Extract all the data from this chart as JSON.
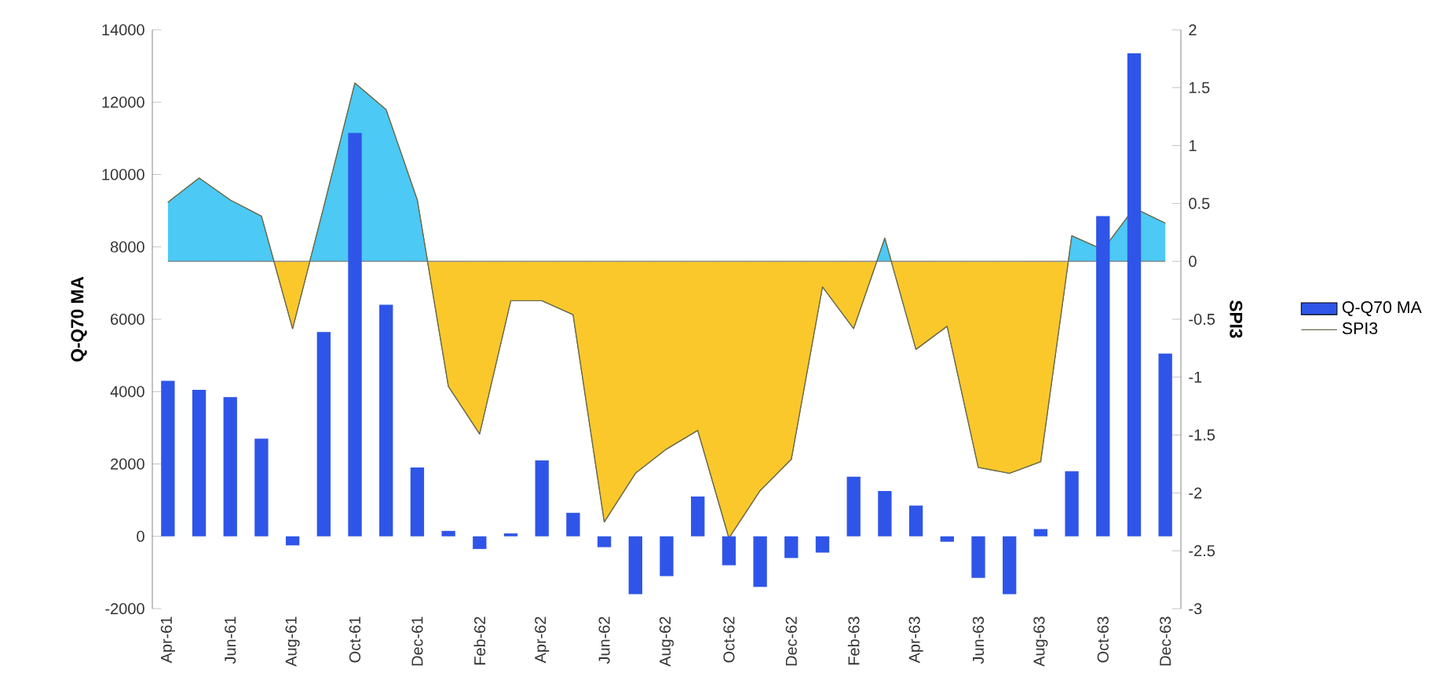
{
  "chart_data": {
    "type": "bar",
    "ylabel": "Q-Q70 MA",
    "y2label": "SPI3",
    "categories": [
      "Apr-61",
      null,
      "Jun-61",
      null,
      "Aug-61",
      null,
      "Oct-61",
      null,
      "Dec-61",
      null,
      "Feb-62",
      null,
      "Apr-62",
      null,
      "Jun-62",
      null,
      "Aug-62",
      null,
      "Oct-62",
      null,
      "Dec-62",
      null,
      "Feb-63",
      null,
      "Apr-63",
      null,
      "Jun-63",
      null,
      "Aug-63",
      null,
      "Oct-63",
      null,
      "Dec-63"
    ],
    "ylim": [
      -2000,
      14000
    ],
    "yticks": [
      -2000,
      0,
      2000,
      4000,
      6000,
      8000,
      10000,
      12000,
      14000
    ],
    "y2lim": [
      -3,
      2
    ],
    "y2ticks": [
      -3,
      -2.5,
      -2,
      -1.5,
      -1,
      -0.5,
      0,
      0.5,
      1,
      1.5,
      2
    ],
    "legend": "right",
    "ref_lines": [
      {
        "axis": "y2",
        "value": 0,
        "color": "#7a7a7a"
      }
    ],
    "series": [
      {
        "name": "Q-Q70 MA",
        "color": "#2f55e8",
        "values": [
          4300,
          4050,
          3850,
          2700,
          -250,
          5650,
          11150,
          6400,
          1900,
          150,
          -350,
          80,
          2100,
          650,
          -300,
          -1600,
          -1100,
          1100,
          -800,
          -1400,
          -600,
          -450,
          1650,
          1250,
          850,
          -150,
          -1150,
          -1600,
          200,
          1800,
          8850,
          13350,
          5050
        ]
      },
      {
        "name": "SPI3",
        "type": "area",
        "axis": "y2",
        "color": "#6b6b4a",
        "colors": [
          "#4cc9f5",
          "#4cc9f5",
          "#4cc9f5",
          "#4cc9f5",
          "#fbc82c",
          "#4cc9f5",
          "#4cc9f5",
          "#4cc9f5",
          "#4cc9f5",
          "#fbc82c",
          "#fbc82c",
          "#fbc82c",
          "#fbc82c",
          "#fbc82c",
          "#fbc82c",
          "#fbc82c",
          "#fbc82c",
          "#fbc82c",
          "#fbc82c",
          "#fbc82c",
          "#fbc82c",
          "#fbc82c",
          "#fbc82c",
          "#4cc9f5",
          "#fbc82c",
          "#fbc82c",
          "#fbc82c",
          "#fbc82c",
          "#fbc82c",
          "#4cc9f5",
          "#4cc9f5",
          "#4cc9f5",
          "#4cc9f5"
        ],
        "values": [
          0.51,
          0.72,
          0.53,
          0.39,
          -0.58,
          0.47,
          1.54,
          1.31,
          0.53,
          -1.08,
          -1.49,
          -0.34,
          -0.34,
          -0.46,
          -2.25,
          -1.83,
          -1.62,
          -1.46,
          -2.39,
          -1.98,
          -1.71,
          -0.22,
          -0.58,
          0.2,
          -0.76,
          -0.56,
          -1.78,
          -1.83,
          -1.73,
          0.22,
          0.1,
          0.46,
          0.33
        ]
      }
    ]
  }
}
